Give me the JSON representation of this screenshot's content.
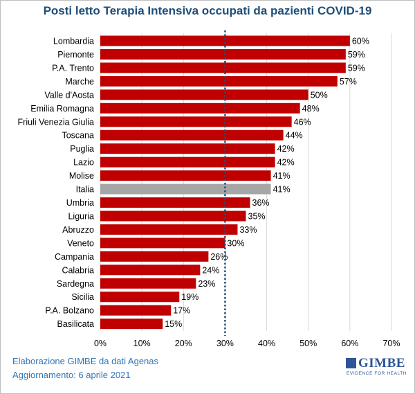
{
  "chart_data": {
    "type": "bar",
    "orientation": "horizontal",
    "title": "Posti letto Terapia  Intensiva occupati da pazienti COVID-19",
    "categories": [
      "Lombardia",
      "Piemonte",
      "P.A. Trento",
      "Marche",
      "Valle d'Aosta",
      "Emilia Romagna",
      "Friuli Venezia Giulia",
      "Toscana",
      "Puglia",
      "Lazio",
      "Molise",
      "Italia",
      "Umbria",
      "Liguria",
      "Abruzzo",
      "Veneto",
      "Campania",
      "Calabria",
      "Sardegna",
      "Sicilia",
      "P.A. Bolzano",
      "Basilicata"
    ],
    "values": [
      60,
      59,
      59,
      57,
      50,
      48,
      46,
      44,
      42,
      42,
      41,
      41,
      36,
      35,
      33,
      30,
      26,
      24,
      23,
      19,
      17,
      15
    ],
    "value_labels": [
      "60%",
      "59%",
      "59%",
      "57%",
      "50%",
      "48%",
      "46%",
      "44%",
      "42%",
      "42%",
      "41%",
      "41%",
      "36%",
      "35%",
      "33%",
      "30%",
      "26%",
      "24%",
      "23%",
      "19%",
      "17%",
      "15%"
    ],
    "highlight_category": "Italia",
    "bar_color": "#c00000",
    "highlight_color": "#a6a6a6",
    "xlim": [
      0,
      70
    ],
    "xticks": [
      "0%",
      "10%",
      "20%",
      "30%",
      "40%",
      "50%",
      "60%",
      "70%"
    ],
    "reference_line": {
      "value": 30,
      "style": "dotted",
      "color": "#1f4e79"
    },
    "grid": true,
    "xlabel": "",
    "ylabel": ""
  },
  "footer": {
    "line1": "Elaborazione GIMBE da dati Agenas",
    "line2": "Aggiornamento: 6 aprile 2021"
  },
  "logo": {
    "word": "GIMBE",
    "tagline": "EVIDENCE FOR HEALTH"
  }
}
